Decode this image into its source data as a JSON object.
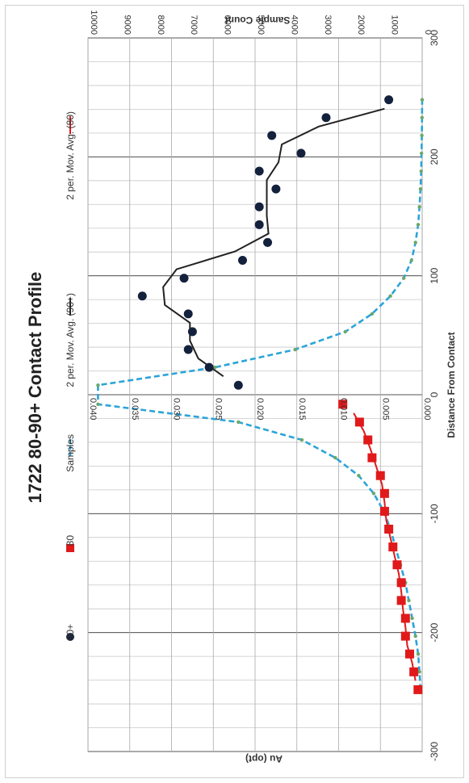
{
  "chart_data": {
    "type": "scatter",
    "title": "1722 80-90+ Contact Profile",
    "xlabel": "Distance From Contact",
    "ylabel": "Au (opt)",
    "y2label": "Sample Count",
    "xlim": [
      -300,
      300
    ],
    "ylim": [
      0,
      0.04
    ],
    "y2lim": [
      0,
      10000
    ],
    "x_ticks": [
      "-300",
      "-200",
      "-100",
      "0",
      "100",
      "200",
      "300"
    ],
    "y_ticks": [
      "0.000",
      "0.005",
      "0.010",
      "0.015",
      "0.020",
      "0.025",
      "0.030",
      "0.035",
      "0.040"
    ],
    "y2_ticks": [
      "0",
      "1000",
      "2000",
      "3000",
      "4000",
      "5000",
      "6000",
      "7000",
      "8000",
      "9000",
      "10000"
    ],
    "grid": true,
    "legend_position": "top",
    "legend": [
      "90+",
      "80",
      "Samples",
      "2 per. Mov. Avg. (90+)",
      "2 per. Mov. Avg. (80)"
    ],
    "colors": {
      "s90": "#14213d",
      "s80": "#e0191b",
      "samples": "#2ba4d8",
      "samples_marker": "#6aa86b",
      "ma90": "#222222",
      "ma80": "#e0191b",
      "grid": "#c8c8c8"
    },
    "series": [
      {
        "name": "90+",
        "axis": "y",
        "x": [
          8,
          23,
          38,
          53,
          68,
          83,
          98,
          113,
          128,
          143,
          158,
          173,
          188,
          203,
          218,
          233,
          248
        ],
        "y": [
          0.022,
          0.0255,
          0.028,
          0.0275,
          0.028,
          0.0335,
          0.0285,
          0.0215,
          0.0185,
          0.0195,
          0.0195,
          0.0175,
          0.0195,
          0.0145,
          0.018,
          0.0115,
          0.004
        ]
      },
      {
        "name": "80",
        "axis": "y",
        "x": [
          -8,
          -23,
          -38,
          -53,
          -68,
          -83,
          -98,
          -113,
          -128,
          -143,
          -158,
          -173,
          -188,
          -203,
          -218,
          -233,
          -248
        ],
        "y": [
          0.0095,
          0.0075,
          0.0065,
          0.006,
          0.005,
          0.0045,
          0.0045,
          0.004,
          0.0035,
          0.003,
          0.0025,
          0.0025,
          0.002,
          0.002,
          0.0015,
          0.001,
          0.0005
        ]
      },
      {
        "name": "Samples",
        "axis": "y2",
        "x": [
          -248,
          -233,
          -218,
          -203,
          -188,
          -173,
          -158,
          -143,
          -128,
          -113,
          -98,
          -83,
          -68,
          -53,
          -38,
          -23,
          -8,
          8,
          23,
          38,
          53,
          68,
          83,
          98,
          113,
          128,
          143,
          158,
          173,
          188,
          203,
          218,
          233,
          248
        ],
        "y": [
          50,
          80,
          120,
          200,
          300,
          400,
          500,
          650,
          800,
          950,
          1150,
          1450,
          1900,
          2600,
          3600,
          5500,
          9700,
          9700,
          6200,
          3800,
          2300,
          1500,
          950,
          550,
          320,
          200,
          120,
          80,
          50,
          30,
          20,
          10,
          5,
          0
        ]
      },
      {
        "name": "2 per. Mov. Avg. (90+)",
        "axis": "y",
        "x": [
          15.5,
          30.5,
          45.5,
          60.5,
          75.5,
          90.5,
          105.5,
          120.5,
          135.5,
          150.5,
          165.5,
          180.5,
          195.5,
          210.5,
          225.5,
          240.5
        ],
        "y": [
          0.0238,
          0.0268,
          0.0278,
          0.0278,
          0.0308,
          0.031,
          0.0294,
          0.0224,
          0.0184,
          0.0186,
          0.0186,
          0.0186,
          0.0172,
          0.0168,
          0.0124,
          0.0045
        ]
      },
      {
        "name": "2 per. Mov. Avg. (80)",
        "axis": "y",
        "x": [
          -240.5,
          -225.5,
          -210.5,
          -195.5,
          -180.5,
          -165.5,
          -150.5,
          -135.5,
          -120.5,
          -105.5,
          -90.5,
          -75.5,
          -60.5,
          -45.5,
          -30.5,
          -15.5
        ],
        "y": [
          0.0008,
          0.0012,
          0.0018,
          0.002,
          0.0023,
          0.0025,
          0.0028,
          0.0033,
          0.0038,
          0.0043,
          0.0045,
          0.0048,
          0.0055,
          0.0062,
          0.007,
          0.0082
        ]
      }
    ]
  }
}
